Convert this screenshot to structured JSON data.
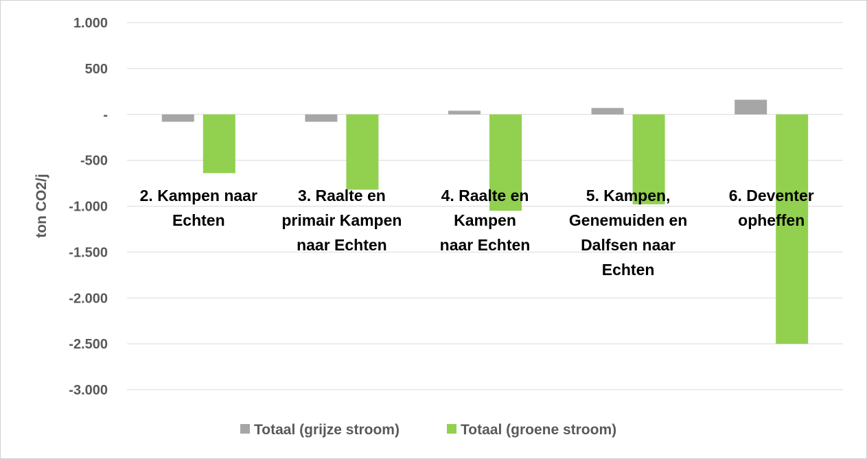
{
  "chart_data": {
    "type": "bar",
    "ylabel": "ton CO2/j",
    "ylim": [
      -3000,
      1000
    ],
    "yticks": [
      1000,
      500,
      0,
      -500,
      -1000,
      -1500,
      -2000,
      -2500,
      -3000
    ],
    "ytick_labels": [
      "1.000",
      "500",
      "-",
      "-500",
      "-1.000",
      "-1.500",
      "-2.000",
      "-2.500",
      "-3.000"
    ],
    "categories": [
      [
        "2. Kampen naar",
        "Echten"
      ],
      [
        "3. Raalte en",
        "primair Kampen",
        "naar Echten"
      ],
      [
        "4. Raalte en",
        "Kampen",
        "naar Echten"
      ],
      [
        "5. Kampen,",
        "Genemuiden en",
        "Dalfsen naar",
        "Echten"
      ],
      [
        "6. Deventer",
        "opheffen"
      ]
    ],
    "series": [
      {
        "name": "Totaal (grijze stroom)",
        "color": "#a6a6a6",
        "values": [
          -80,
          -80,
          40,
          70,
          160
        ]
      },
      {
        "name": "Totaal (groene stroom)",
        "color": "#92d050",
        "values": [
          -640,
          -820,
          -1050,
          -980,
          -2500
        ]
      }
    ],
    "grid": true,
    "legend_position": "bottom"
  }
}
